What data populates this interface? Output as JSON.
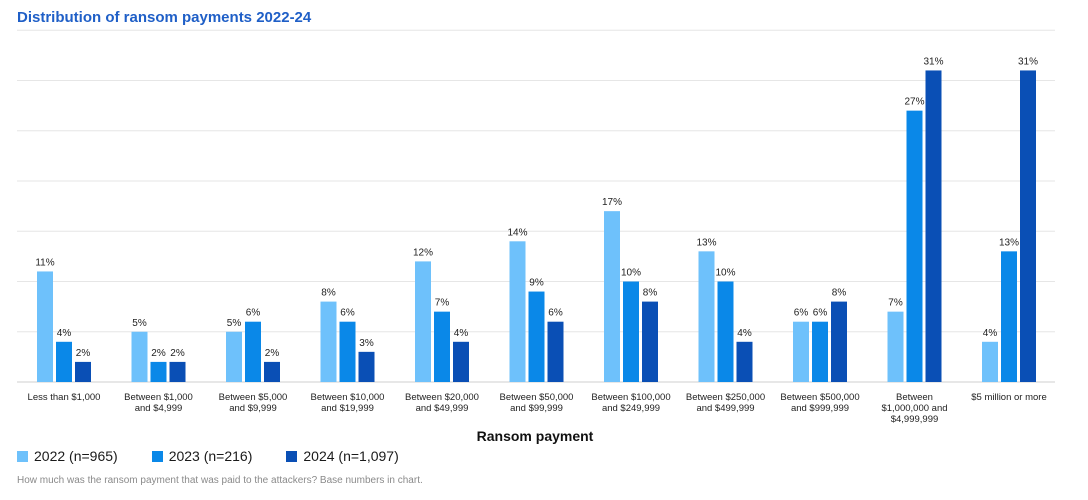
{
  "title": "Distribution of ransom payments 2022-24",
  "footnote": "How much was the ransom payment that was paid to the attackers? Base numbers in chart.",
  "colors": {
    "title": "#1f5fc7",
    "s2022": "#6ec1fb",
    "s2023": "#0a88e8",
    "s2024": "#0a4fb5",
    "grid": "#e6e6e6"
  },
  "chart_data": {
    "type": "bar",
    "title": "Distribution of ransom payments 2022-24",
    "xlabel": "Ransom payment",
    "ylabel": "",
    "ylim": [
      0,
      35
    ],
    "grid": true,
    "legend": "bottom-left",
    "categories": [
      [
        "Less than $1,000"
      ],
      [
        "Between $1,000",
        "and $4,999"
      ],
      [
        "Between $5,000",
        "and $9,999"
      ],
      [
        "Between $10,000",
        "and $19,999"
      ],
      [
        "Between $20,000",
        "and $49,999"
      ],
      [
        "Between $50,000",
        "and $99,999"
      ],
      [
        "Between $100,000",
        "and $249,999"
      ],
      [
        "Between $250,000",
        "and $499,999"
      ],
      [
        "Between $500,000",
        "and $999,999"
      ],
      [
        "Between",
        "$1,000,000 and",
        "$4,999,999"
      ],
      [
        "$5 million or more"
      ]
    ],
    "series": [
      {
        "name": "2022 (n=965)",
        "color": "#6ec1fb",
        "values": [
          11,
          5,
          5,
          8,
          12,
          14,
          17,
          13,
          6,
          7,
          4
        ],
        "labels": [
          "11%",
          "5%",
          "5%",
          "8%",
          "12%",
          "14%",
          "17%",
          "13%",
          "6%",
          "7%",
          "4%"
        ]
      },
      {
        "name": "2023 (n=216)",
        "color": "#0a88e8",
        "values": [
          4,
          2,
          6,
          6,
          7,
          9,
          10,
          10,
          6,
          27,
          13
        ],
        "labels": [
          "4%",
          "2%",
          "6%",
          "6%",
          "7%",
          "9%",
          "10%",
          "10%",
          "6%",
          "27%",
          "13%"
        ]
      },
      {
        "name": "2024 (n=1,097)",
        "color": "#0a4fb5",
        "values": [
          2,
          2,
          2,
          3,
          4,
          6,
          8,
          4,
          8,
          31,
          31
        ],
        "labels": [
          "2%",
          "2%",
          "2%",
          "3%",
          "4%",
          "6%",
          "8%",
          "4%",
          "8%",
          "31%",
          "31%"
        ]
      }
    ]
  }
}
